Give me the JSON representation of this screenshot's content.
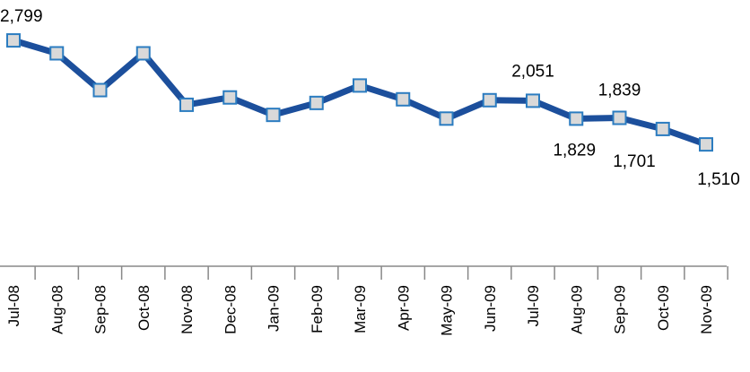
{
  "chart_data": {
    "type": "line",
    "categories": [
      "Jul-08",
      "Aug-08",
      "Sep-08",
      "Oct-08",
      "Nov-08",
      "Dec-08",
      "Jan-09",
      "Feb-09",
      "Mar-09",
      "Apr-09",
      "May-09",
      "Jun-09",
      "Jul-09",
      "Aug-09",
      "Sep-09",
      "Oct-09",
      "Nov-09"
    ],
    "series": [
      {
        "color": "#1c4f9c",
        "values": [
          2799,
          2639,
          2183,
          2639,
          2001,
          2092,
          1876,
          2024,
          2240,
          2069,
          1830,
          2058,
          2051,
          1829,
          1839,
          1701,
          1510
        ],
        "value_labels": [
          "2,799",
          null,
          null,
          null,
          null,
          null,
          null,
          null,
          null,
          null,
          null,
          null,
          "2,051",
          "1,829",
          "1,839",
          "1,701",
          "1,510"
        ]
      }
    ],
    "ylim": [
      0,
      3300
    ]
  }
}
